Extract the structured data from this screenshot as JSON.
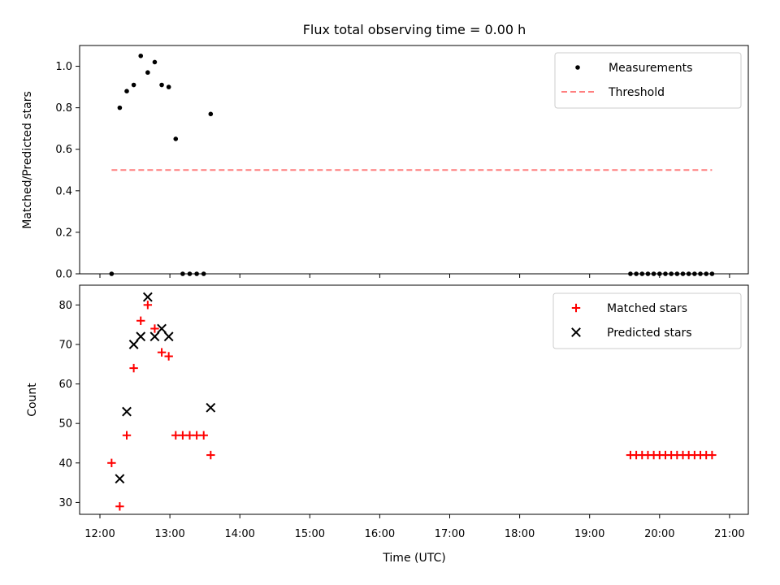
{
  "chart_data": [
    {
      "type": "scatter",
      "title": "Flux total observing time = 0.00 h",
      "xlabel": "",
      "ylabel": "Matched/Predicted stars",
      "ylim": [
        0,
        1.1
      ],
      "yticks": [
        "0.0",
        "0.2",
        "0.4",
        "0.6",
        "0.8",
        "1.0"
      ],
      "legend_position": "upper-right",
      "series": [
        {
          "name": "Measurements",
          "kind": "dots",
          "color": "#000000",
          "x": [
            "12:10",
            "12:17",
            "12:23",
            "12:29",
            "12:35",
            "12:41",
            "12:47",
            "12:53",
            "12:59",
            "13:05",
            "13:11",
            "13:17",
            "13:23",
            "13:29",
            "13:35",
            "19:35",
            "19:40",
            "19:45",
            "19:50",
            "19:55",
            "20:00",
            "20:05",
            "20:10",
            "20:15",
            "20:20",
            "20:25",
            "20:30",
            "20:35",
            "20:40",
            "20:45"
          ],
          "y": [
            0.0,
            0.8,
            0.88,
            0.91,
            1.05,
            0.97,
            1.02,
            0.91,
            0.9,
            0.65,
            0.0,
            0.0,
            0.0,
            0.0,
            0.77,
            0.0,
            0.0,
            0.0,
            0.0,
            0.0,
            0.0,
            0.0,
            0.0,
            0.0,
            0.0,
            0.0,
            0.0,
            0.0,
            0.0,
            0.0
          ]
        },
        {
          "name": "Threshold",
          "kind": "dashed-line",
          "color": "#ff7f7f",
          "x": [
            "12:10",
            "20:45"
          ],
          "y": [
            0.5,
            0.5
          ]
        }
      ]
    },
    {
      "type": "scatter",
      "title": "",
      "xlabel": "Time (UTC)",
      "ylabel": "Count",
      "ylim": [
        27,
        85
      ],
      "yticks": [
        "30",
        "40",
        "50",
        "60",
        "70",
        "80"
      ],
      "xticks": [
        "12:00",
        "13:00",
        "14:00",
        "15:00",
        "16:00",
        "17:00",
        "18:00",
        "19:00",
        "20:00",
        "21:00"
      ],
      "legend_position": "upper-right",
      "series": [
        {
          "name": "Matched stars",
          "kind": "plus",
          "color": "#ff0000",
          "x": [
            "12:10",
            "12:17",
            "12:23",
            "12:29",
            "12:35",
            "12:41",
            "12:47",
            "12:53",
            "12:59",
            "13:05",
            "13:11",
            "13:17",
            "13:23",
            "13:29",
            "13:35",
            "19:35",
            "19:40",
            "19:45",
            "19:50",
            "19:55",
            "20:00",
            "20:05",
            "20:10",
            "20:15",
            "20:20",
            "20:25",
            "20:30",
            "20:35",
            "20:40",
            "20:45"
          ],
          "y": [
            40,
            29,
            47,
            64,
            76,
            80,
            74,
            68,
            67,
            47,
            47,
            47,
            47,
            47,
            42,
            42,
            42,
            42,
            42,
            42,
            42,
            42,
            42,
            42,
            42,
            42,
            42,
            42,
            42,
            42
          ]
        },
        {
          "name": "Predicted stars",
          "kind": "x",
          "color": "#000000",
          "x": [
            "12:17",
            "12:23",
            "12:29",
            "12:35",
            "12:41",
            "12:47",
            "12:53",
            "12:59",
            "13:35"
          ],
          "y": [
            36,
            53,
            70,
            72,
            82,
            72,
            74,
            72,
            54
          ]
        }
      ]
    }
  ]
}
